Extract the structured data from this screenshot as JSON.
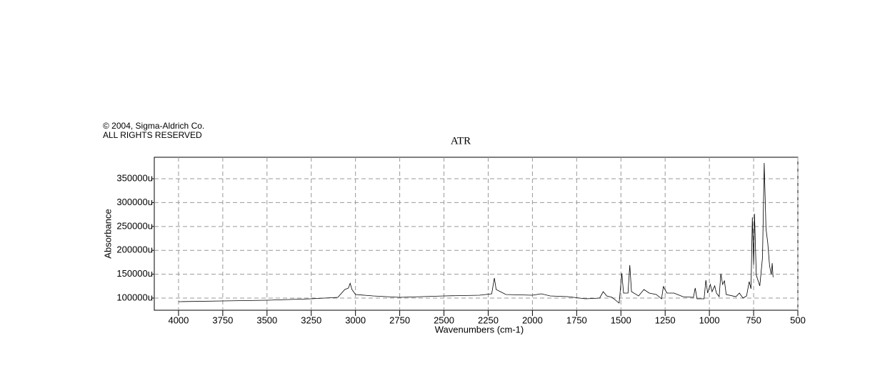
{
  "chart_data": {
    "type": "line",
    "notes": [
      "© 2004, Sigma-Aldrich Co.",
      "ALL RIGHTS RESERVED"
    ],
    "title": "ATR",
    "x_label": "Wavenumbers (cm-1)",
    "y_label": "Absorbance",
    "xlim": [
      4137,
      500
    ],
    "ylim": [
      74500,
      395000
    ],
    "xticks": [
      4000,
      3750,
      3500,
      3250,
      3000,
      2750,
      2500,
      2250,
      2000,
      1750,
      1500,
      1250,
      1000,
      750,
      500
    ],
    "yticks": [
      {
        "value": 100000,
        "label": "100000u"
      },
      {
        "value": 150000,
        "label": "150000u"
      },
      {
        "value": 200000,
        "label": "200000u"
      },
      {
        "value": 250000,
        "label": "250000u"
      },
      {
        "value": 300000,
        "label": "300000u"
      },
      {
        "value": 350000,
        "label": "350000u"
      }
    ],
    "grid": true,
    "color": "#000000",
    "x": [
      4000,
      3750,
      3500,
      3250,
      3100,
      3060,
      3040,
      3030,
      3020,
      3000,
      2950,
      2900,
      2750,
      2500,
      2300,
      2230,
      2215,
      2205,
      2150,
      2000,
      1950,
      1900,
      1800,
      1700,
      1620,
      1600,
      1580,
      1550,
      1510,
      1495,
      1485,
      1460,
      1450,
      1440,
      1400,
      1370,
      1340,
      1300,
      1270,
      1260,
      1240,
      1200,
      1150,
      1090,
      1080,
      1070,
      1030,
      1020,
      1010,
      995,
      985,
      970,
      960,
      945,
      935,
      925,
      915,
      905,
      850,
      830,
      810,
      790,
      775,
      765,
      757,
      750,
      745,
      735,
      715,
      700,
      690,
      680,
      670,
      660,
      650,
      645,
      640
    ],
    "values": [
      92500,
      94000,
      95500,
      98500,
      101500,
      118000,
      121000,
      131000,
      118000,
      107500,
      106000,
      104500,
      101500,
      104500,
      106000,
      109000,
      142000,
      118000,
      107500,
      106000,
      109000,
      104500,
      103000,
      98500,
      100000,
      113500,
      104500,
      101500,
      89500,
      152000,
      110500,
      110500,
      169000,
      113500,
      104500,
      118000,
      110500,
      107500,
      98500,
      124000,
      110500,
      110500,
      103000,
      101500,
      121000,
      98500,
      98500,
      137500,
      110500,
      128500,
      113500,
      125500,
      110500,
      103000,
      151000,
      128500,
      136000,
      107500,
      103000,
      110500,
      100000,
      104500,
      134500,
      119500,
      269000,
      170000,
      276500,
      148000,
      125500,
      185000,
      383000,
      245000,
      215000,
      167500,
      149500,
      173000,
      143500
    ]
  }
}
